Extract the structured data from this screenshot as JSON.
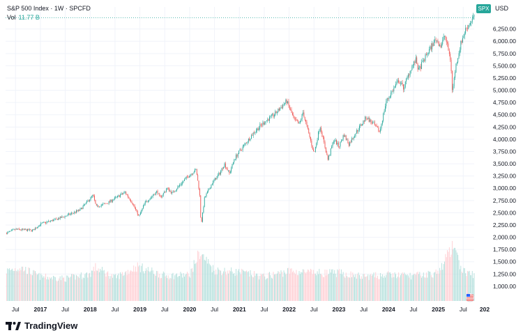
{
  "header": {
    "title": "S&P 500 Index · 1W · SPCFD",
    "vol_label": "Vol",
    "vol_value": "11.77 B",
    "ticker_badge": "SPX",
    "currency": "USD"
  },
  "brand": {
    "name": "TradingView"
  },
  "colors": {
    "up": "#26a69a",
    "down": "#ef5350",
    "vol_up": "#b2dfdb",
    "vol_down": "#ffcdd2",
    "grid": "#f0f3fa",
    "axis_text": "#131722",
    "last_price_line": "#26a69a"
  },
  "chart_data": {
    "type": "candlestick",
    "title": "S&P 500 Index · 1W · SPCFD",
    "grid": true,
    "ylim": [
      700,
      6700
    ],
    "y_ticks": [
      "1,000.00",
      "1,250.00",
      "1,500.00",
      "1,750.00",
      "2,000.00",
      "2,250.00",
      "2,500.00",
      "2,750.00",
      "3,000.00",
      "3,250.00",
      "3,500.00",
      "3,750.00",
      "4,000.00",
      "4,250.00",
      "4,500.00",
      "4,750.00",
      "5,000.00",
      "5,250.00",
      "5,500.00",
      "5,750.00",
      "6,000.00",
      "6,250.00"
    ],
    "y_tick_values": [
      1000,
      1250,
      1500,
      1750,
      2000,
      2250,
      2500,
      2750,
      3000,
      3250,
      3500,
      3750,
      4000,
      4250,
      4500,
      4750,
      5000,
      5250,
      5500,
      5750,
      6000,
      6250
    ],
    "x_tick_labels": [
      "Jul",
      "2017",
      "Jul",
      "2018",
      "Jul",
      "2019",
      "Jul",
      "2020",
      "Jul",
      "2021",
      "Jul",
      "2022",
      "Jul",
      "2023",
      "Jul",
      "2024",
      "Jul",
      "2025",
      "Jul",
      "202"
    ],
    "x_tick_times": [
      2016.5,
      2017.0,
      2017.5,
      2018.0,
      2018.5,
      2019.0,
      2019.5,
      2020.0,
      2020.5,
      2021.0,
      2021.5,
      2022.0,
      2022.5,
      2023.0,
      2023.5,
      2024.0,
      2024.5,
      2025.0,
      2025.5,
      2026.0
    ],
    "x_range": [
      2016.3,
      2025.72
    ],
    "price_path": [
      [
        2016.3,
        2080
      ],
      [
        2016.5,
        2160
      ],
      [
        2016.85,
        2140
      ],
      [
        2017.0,
        2270
      ],
      [
        2017.3,
        2360
      ],
      [
        2017.5,
        2430
      ],
      [
        2017.8,
        2560
      ],
      [
        2018.06,
        2860
      ],
      [
        2018.12,
        2620
      ],
      [
        2018.35,
        2700
      ],
      [
        2018.7,
        2920
      ],
      [
        2018.85,
        2700
      ],
      [
        2018.98,
        2420
      ],
      [
        2019.1,
        2700
      ],
      [
        2019.35,
        2940
      ],
      [
        2019.4,
        2800
      ],
      [
        2019.55,
        3000
      ],
      [
        2019.65,
        2900
      ],
      [
        2019.95,
        3230
      ],
      [
        2020.13,
        3380
      ],
      [
        2020.2,
        2900
      ],
      [
        2020.23,
        2240
      ],
      [
        2020.3,
        2800
      ],
      [
        2020.45,
        3100
      ],
      [
        2020.6,
        3300
      ],
      [
        2020.7,
        3500
      ],
      [
        2020.8,
        3300
      ],
      [
        2020.9,
        3600
      ],
      [
        2021.0,
        3750
      ],
      [
        2021.3,
        4150
      ],
      [
        2021.5,
        4350
      ],
      [
        2021.7,
        4500
      ],
      [
        2021.95,
        4780
      ],
      [
        2022.1,
        4400
      ],
      [
        2022.2,
        4300
      ],
      [
        2022.28,
        4550
      ],
      [
        2022.45,
        3900
      ],
      [
        2022.5,
        3700
      ],
      [
        2022.62,
        4280
      ],
      [
        2022.78,
        3580
      ],
      [
        2022.9,
        4000
      ],
      [
        2023.0,
        3850
      ],
      [
        2023.1,
        4100
      ],
      [
        2023.2,
        3900
      ],
      [
        2023.35,
        4150
      ],
      [
        2023.55,
        4450
      ],
      [
        2023.7,
        4300
      ],
      [
        2023.82,
        4150
      ],
      [
        2023.95,
        4770
      ],
      [
        2024.2,
        5200
      ],
      [
        2024.3,
        5050
      ],
      [
        2024.45,
        5450
      ],
      [
        2024.55,
        5620
      ],
      [
        2024.6,
        5400
      ],
      [
        2024.75,
        5700
      ],
      [
        2024.95,
        6050
      ],
      [
        2025.05,
        5900
      ],
      [
        2025.13,
        6130
      ],
      [
        2025.25,
        5600
      ],
      [
        2025.28,
        4950
      ],
      [
        2025.35,
        5500
      ],
      [
        2025.45,
        5950
      ],
      [
        2025.55,
        6250
      ],
      [
        2025.65,
        6400
      ],
      [
        2025.7,
        6480
      ]
    ],
    "volume_ylim": [
      0,
      8
    ],
    "volume_path": [
      [
        2016.3,
        3.2
      ],
      [
        2016.6,
        3.6
      ],
      [
        2017.0,
        2.6
      ],
      [
        2017.5,
        2.4
      ],
      [
        2018.0,
        2.9
      ],
      [
        2018.1,
        3.6
      ],
      [
        2018.5,
        2.5
      ],
      [
        2018.95,
        3.7
      ],
      [
        2019.5,
        2.7
      ],
      [
        2020.0,
        2.8
      ],
      [
        2020.2,
        5.2
      ],
      [
        2020.5,
        3.3
      ],
      [
        2021.0,
        3.1
      ],
      [
        2021.5,
        2.6
      ],
      [
        2022.0,
        3.2
      ],
      [
        2022.5,
        3.0
      ],
      [
        2023.0,
        3.0
      ],
      [
        2023.5,
        2.6
      ],
      [
        2024.0,
        2.8
      ],
      [
        2024.5,
        2.7
      ],
      [
        2025.0,
        3.0
      ],
      [
        2025.27,
        5.8
      ],
      [
        2025.5,
        3.2
      ],
      [
        2025.7,
        2.8
      ]
    ],
    "last_price": 6480
  }
}
